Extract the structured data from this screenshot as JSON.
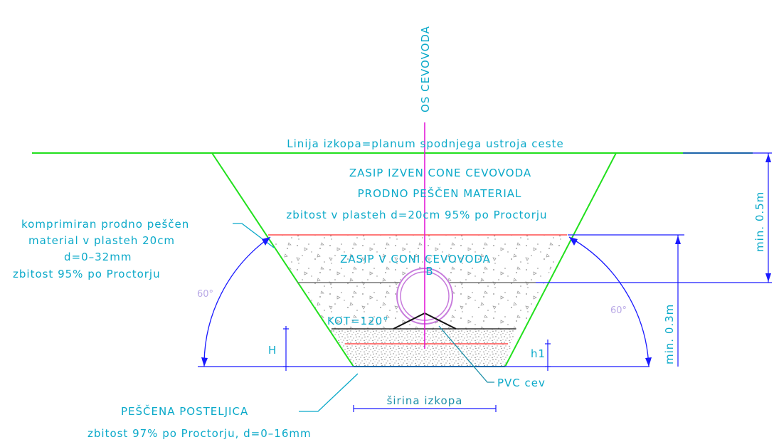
{
  "axis_label": "OS CEVOVODA",
  "excavation_line": "Linija izkopa=planum spodnjega ustroja ceste",
  "backfill_outside": {
    "line1": "ZASIP IZVEN CONE CEVOVODA",
    "line2": "PRODNO PEŠČEN MATERIAL",
    "line3": "zbitost v plasteh d=20cm 95% po Proctorju"
  },
  "backfill_zone": "ZASIP V CONI CEVOVODA",
  "label_b": "B",
  "angle_label": "KOT=120°",
  "left_note": {
    "line1": "komprimiran prodno peščen",
    "line2": "material v plasteh 20cm",
    "line3": "d=0–32mm",
    "line4": "zbitost 95% po Proctorju"
  },
  "angle_left": "60°",
  "angle_right": "60°",
  "dim_min05": "min. 0.5m",
  "dim_min03": "min. 0.3m",
  "dim_H": "H",
  "dim_h1": "h1",
  "pipe_label": "PVC cev",
  "width_label": "širina izkopa",
  "bedding": {
    "line1": "PEŠČENA POSTELJICA",
    "line2": "zbitost 97% po Proctorju, d=0–16mm"
  },
  "colors": {
    "green": "#22e01d",
    "cyan": "#0aa9c9",
    "blue": "#1a1aff",
    "magenta": "#e21ad8",
    "red": "#ff2a2a",
    "pipe": "#c77bdc"
  }
}
